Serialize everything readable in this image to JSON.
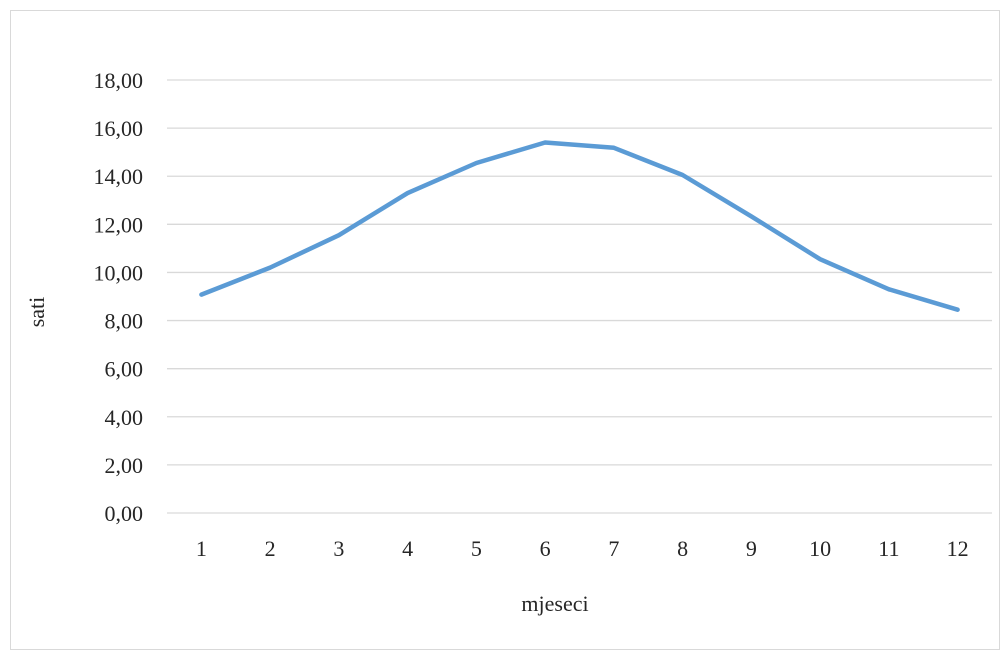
{
  "chart_data": {
    "type": "line",
    "title": "",
    "xlabel": "mjeseci",
    "ylabel": "sati",
    "categories": [
      "1",
      "2",
      "3",
      "4",
      "5",
      "6",
      "7",
      "8",
      "9",
      "10",
      "11",
      "12"
    ],
    "series": [
      {
        "values": [
          9.08,
          10.2,
          11.55,
          13.3,
          14.55,
          15.4,
          15.18,
          14.05,
          12.33,
          10.55,
          9.3,
          8.45
        ],
        "color": "#5b9bd5"
      }
    ],
    "ylim": [
      0,
      18
    ],
    "yticks": [
      "0,00",
      "2,00",
      "4,00",
      "6,00",
      "8,00",
      "10,00",
      "12,00",
      "14,00",
      "16,00",
      "18,00"
    ],
    "grid": true,
    "legend": "none"
  }
}
